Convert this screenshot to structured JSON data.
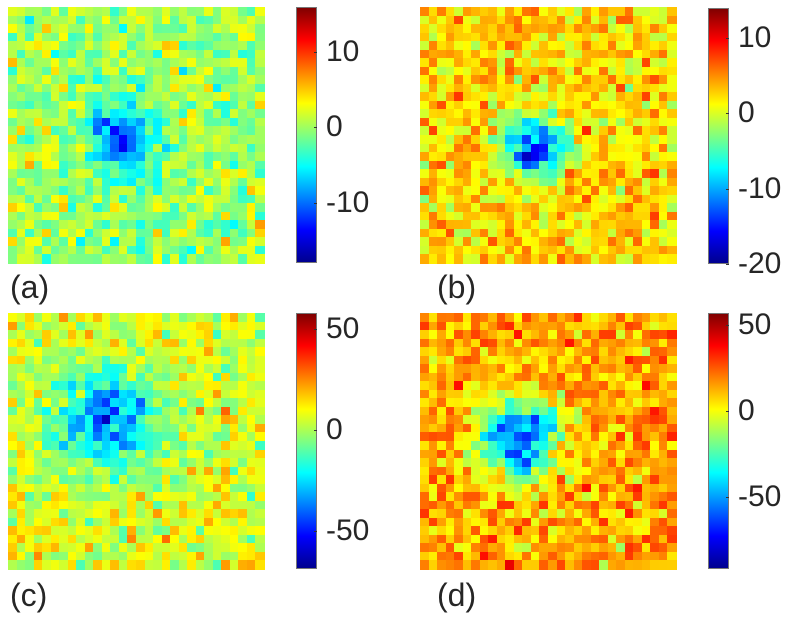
{
  "chart_data": [
    {
      "type": "heatmap",
      "panel_label": "(a)",
      "colormap": "jet",
      "rows": 30,
      "cols": 30,
      "zlim": [
        -18,
        16
      ],
      "colorbar_ticks": [
        10,
        0,
        -10
      ],
      "colorbar_tick_labels": [
        "10",
        "0",
        "-10"
      ],
      "feature": "weak negative cluster near center"
    },
    {
      "type": "heatmap",
      "panel_label": "(b)",
      "colormap": "jet",
      "rows": 30,
      "cols": 30,
      "zlim": [
        -20,
        14
      ],
      "colorbar_ticks": [
        10,
        0,
        -10,
        -20
      ],
      "colorbar_tick_labels": [
        "10",
        "0",
        "-10",
        "-20"
      ],
      "feature": "negative cluster near center"
    },
    {
      "type": "heatmap",
      "panel_label": "(c)",
      "colormap": "jet",
      "rows": 30,
      "cols": 30,
      "zlim": [
        -69,
        58
      ],
      "colorbar_ticks": [
        50,
        0,
        -50
      ],
      "colorbar_tick_labels": [
        "50",
        "0",
        "-50"
      ],
      "feature": "diffuse negative region upper-left of center"
    },
    {
      "type": "heatmap",
      "panel_label": "(d)",
      "colormap": "jet",
      "rows": 30,
      "cols": 30,
      "zlim": [
        -92,
        57
      ],
      "colorbar_ticks": [
        50,
        0,
        -50
      ],
      "colorbar_tick_labels": [
        "50",
        "0",
        "-50"
      ],
      "feature": "strong negative cluster near center"
    }
  ]
}
